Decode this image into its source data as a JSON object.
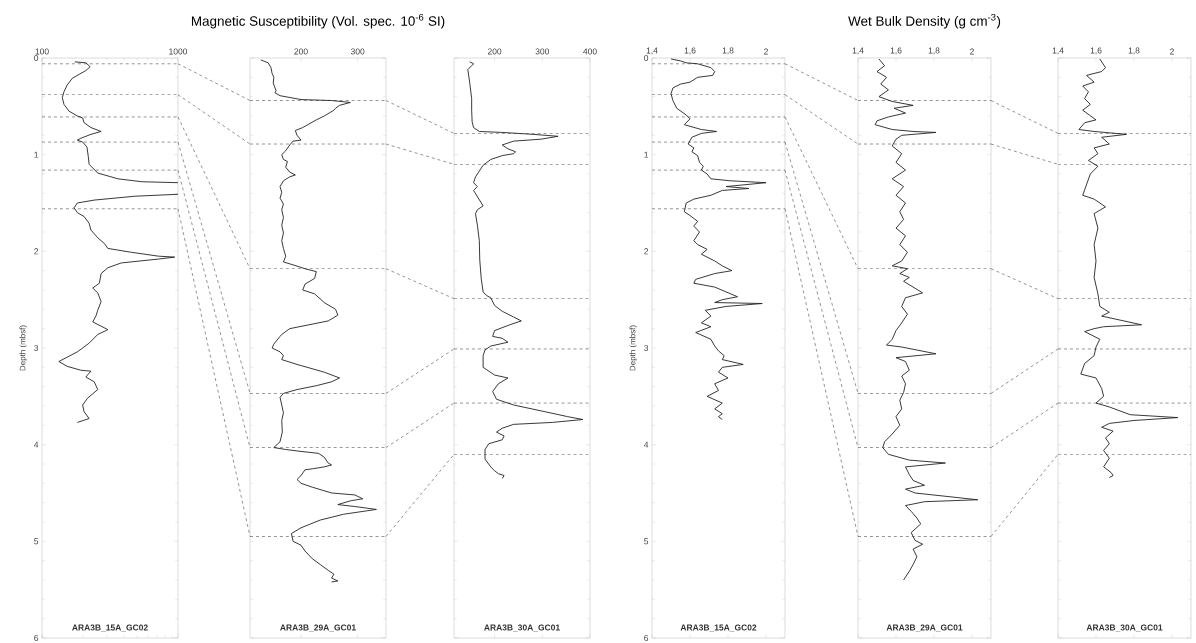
{
  "chart_data": [
    {
      "type": "line",
      "ylabel": "Depth (mbsf)",
      "xlim": [
        100,
        1000
      ],
      "ylim": [
        6,
        0
      ],
      "xticks": [
        100,
        1000
      ],
      "yticks": [
        0,
        1,
        2,
        3,
        4,
        5,
        6
      ],
      "log": "x",
      "annotations": [
        "ARA3B_15A_GC02"
      ],
      "ref_lines": [
        {
          "axis": "y",
          "value": 0.06,
          "line_style": "dashed"
        },
        {
          "axis": "y",
          "value": 0.38,
          "line_style": "dashed"
        },
        {
          "axis": "y",
          "value": 0.61,
          "line_style": "dashed"
        },
        {
          "axis": "y",
          "value": 0.87,
          "line_style": "dashed"
        },
        {
          "axis": "y",
          "value": 1.16,
          "line_style": "dashed"
        },
        {
          "axis": "y",
          "value": 1.56,
          "line_style": "dashed"
        }
      ],
      "series": [
        {
          "color": "#222222",
          "x": [
            174,
            210,
            226,
            210,
            167,
            153,
            145,
            141,
            145,
            158,
            182,
            199,
            204,
            229,
            272,
            229,
            193,
            182,
            199,
            214,
            219,
            222,
            257,
            362,
            540,
            1000,
            null,
            1000,
            481,
            242,
            182,
            172,
            182,
            204,
            222,
            229,
            257,
            288,
            305,
            454,
            718,
            945,
            718,
            383,
            305,
            272,
            264,
            236,
            257,
            272,
            257,
            249,
            236,
            305,
            257,
            222,
            182,
            133,
            153,
            193,
            229,
            210,
            242,
            257,
            216,
            199,
            204,
            222,
            182
          ],
          "values": [
            0.04,
            0.05,
            0.09,
            0.13,
            0.21,
            0.28,
            0.35,
            0.41,
            0.48,
            0.55,
            0.6,
            0.62,
            0.67,
            0.72,
            0.76,
            0.79,
            0.83,
            0.85,
            0.87,
            0.92,
            1.02,
            1.1,
            1.19,
            1.25,
            1.28,
            1.29,
            null,
            1.41,
            1.43,
            1.47,
            1.5,
            1.55,
            1.6,
            1.64,
            1.71,
            1.78,
            1.86,
            1.92,
            1.97,
            2.01,
            2.05,
            2.06,
            2.08,
            2.12,
            2.17,
            2.23,
            2.33,
            2.38,
            2.43,
            2.52,
            2.61,
            2.67,
            2.73,
            2.81,
            2.86,
            2.95,
            3.04,
            3.14,
            3.19,
            3.23,
            3.24,
            3.3,
            3.35,
            3.43,
            3.52,
            3.59,
            3.66,
            3.73,
            3.77
          ]
        }
      ]
    },
    {
      "type": "line",
      "title": "Magnetic Susceptibility (Vol. spec. 10$^{-6}$ SI)",
      "xlim": [
        110,
        350
      ],
      "ylim": [
        6,
        0
      ],
      "xticks": [
        200,
        300
      ],
      "yticks": [
        0,
        1,
        2,
        3,
        4,
        5,
        6
      ],
      "tick_labels": "x",
      "annotations": [
        "ARA3B_29A_GC01"
      ],
      "ref_lines": [
        {
          "axis": "y",
          "value": 0.44,
          "line_style": "dashed"
        },
        {
          "axis": "y",
          "value": 0.89,
          "line_style": "dashed"
        },
        {
          "axis": "y",
          "value": 2.18,
          "line_style": "dashed"
        },
        {
          "axis": "y",
          "value": 3.47,
          "line_style": "dashed"
        },
        {
          "axis": "y",
          "value": 4.03,
          "line_style": "dashed"
        },
        {
          "axis": "y",
          "value": 4.95,
          "line_style": "dashed"
        }
      ],
      "series": [
        {
          "color": "#222222",
          "x": [
            129,
            142,
            147,
            149,
            152,
            151,
            156,
            154,
            163,
            200,
            254,
            287,
            268,
            261,
            258,
            241,
            227,
            203,
            190,
            193,
            200,
            186,
            180,
            173,
            166,
            169,
            176,
            173,
            180,
            190,
            180,
            169,
            163,
            166,
            163,
            169,
            166,
            169,
            166,
            169,
            166,
            169,
            173,
            169,
            186,
            207,
            227,
            224,
            207,
            203,
            224,
            241,
            261,
            265,
            248,
            214,
            180,
            166,
            163,
            152,
            149,
            163,
            169,
            166,
            193,
            241,
            268,
            254,
            227,
            193,
            169,
            163,
            166,
            169,
            166,
            167,
            163,
            152,
            173,
            200,
            231,
            241,
            248,
            254,
            241,
            220,
            207,
            200,
            193,
            200,
            220,
            254,
            295,
            309,
            288,
            265,
            295,
            333,
            275,
            234,
            200,
            183,
            186,
            200,
            207,
            220,
            234,
            248,
            258,
            254,
            265,
            254
          ],
          "values": [
            0.02,
            0.05,
            0.1,
            0.16,
            0.2,
            0.26,
            0.34,
            0.36,
            0.39,
            0.43,
            0.44,
            0.46,
            0.49,
            0.52,
            0.54,
            0.6,
            0.64,
            0.72,
            0.75,
            0.8,
            0.85,
            0.86,
            0.9,
            0.96,
            1.0,
            1.05,
            1.07,
            1.13,
            1.18,
            1.21,
            1.23,
            1.27,
            1.33,
            1.39,
            1.45,
            1.51,
            1.57,
            1.65,
            1.73,
            1.81,
            1.89,
            1.97,
            2.05,
            2.11,
            2.14,
            2.18,
            2.21,
            2.28,
            2.34,
            2.4,
            2.44,
            2.53,
            2.6,
            2.66,
            2.72,
            2.76,
            2.8,
            2.86,
            2.88,
            2.96,
            3.0,
            3.04,
            3.08,
            3.12,
            3.17,
            3.25,
            3.31,
            3.35,
            3.39,
            3.43,
            3.47,
            3.51,
            3.59,
            3.67,
            3.75,
            3.87,
            3.97,
            4.03,
            4.05,
            4.07,
            4.09,
            4.13,
            4.19,
            4.21,
            4.23,
            4.25,
            4.26,
            4.32,
            4.36,
            4.4,
            4.44,
            4.5,
            4.52,
            4.56,
            4.58,
            4.62,
            4.64,
            4.67,
            4.72,
            4.78,
            4.86,
            4.92,
            5.0,
            5.04,
            5.1,
            5.18,
            5.24,
            5.3,
            5.34,
            5.38,
            5.41,
            5.42
          ]
        }
      ]
    },
    {
      "type": "line",
      "xlim": [
        115,
        400
      ],
      "ylim": [
        6,
        0
      ],
      "xticks": [
        200,
        300,
        400
      ],
      "yticks": [
        0,
        1,
        2,
        3,
        4,
        5,
        6
      ],
      "tick_labels": "x",
      "annotations": [
        "ARA3B_30A_GC01"
      ],
      "ref_lines": [
        {
          "axis": "y",
          "value": 0.78,
          "line_style": "dashed"
        },
        {
          "axis": "y",
          "value": 1.1,
          "line_style": "dashed"
        },
        {
          "axis": "y",
          "value": 2.49,
          "line_style": "dashed"
        },
        {
          "axis": "y",
          "value": 3.01,
          "line_style": "dashed"
        },
        {
          "axis": "y",
          "value": 3.57,
          "line_style": "dashed"
        },
        {
          "axis": "y",
          "value": 4.1,
          "line_style": "dashed"
        }
      ],
      "series": [
        {
          "color": "#222222",
          "x": [
            148,
            156,
            152,
            144,
            148,
            152,
            152,
            153,
            156,
            168,
            216,
            281,
            333,
            297,
            240,
            216,
            228,
            244,
            240,
            216,
            192,
            176,
            168,
            160,
            156,
            164,
            156,
            176,
            164,
            160,
            164,
            168,
            169,
            172,
            176,
            184,
            192,
            200,
            216,
            240,
            256,
            232,
            200,
            196,
            216,
            228,
            192,
            180,
            176,
            176,
            200,
            228,
            208,
            196,
            204,
            240,
            297,
            353,
            385,
            321,
            240,
            216,
            204,
            220,
            216,
            188,
            180,
            180,
            192,
            200,
            208,
            220,
            216
          ],
          "values": [
            0.04,
            0.06,
            0.08,
            0.12,
            0.26,
            0.42,
            0.54,
            0.66,
            0.72,
            0.76,
            0.77,
            0.79,
            0.81,
            0.84,
            0.86,
            0.9,
            0.94,
            0.97,
            0.99,
            1.01,
            1.05,
            1.11,
            1.17,
            1.23,
            1.29,
            1.33,
            1.37,
            1.53,
            1.57,
            1.61,
            1.73,
            1.89,
            2.09,
            2.28,
            2.42,
            2.46,
            2.48,
            2.56,
            2.62,
            2.68,
            2.72,
            2.76,
            2.82,
            2.88,
            2.9,
            2.94,
            2.98,
            3.02,
            3.08,
            3.2,
            3.28,
            3.31,
            3.37,
            3.45,
            3.53,
            3.59,
            3.65,
            3.71,
            3.74,
            3.77,
            3.79,
            3.83,
            3.87,
            3.91,
            3.95,
            3.99,
            4.05,
            4.15,
            4.23,
            4.27,
            4.3,
            4.32,
            4.35
          ]
        }
      ]
    },
    {
      "type": "line",
      "ylabel": "Depth (mbsf)",
      "xlim": [
        1.4,
        2.1
      ],
      "ylim": [
        6,
        0
      ],
      "xticks": [
        {
          "value": 1.4,
          "label": "1,4"
        },
        {
          "value": 1.6,
          "label": "1,6"
        },
        {
          "value": 1.8,
          "label": "1,8"
        },
        2
      ],
      "yticks": [
        0,
        1,
        2,
        3,
        4,
        5,
        6
      ],
      "annotations": [
        "ARA3B_15A_GC02"
      ],
      "ref_lines": [
        {
          "axis": "y",
          "value": 0.06,
          "line_style": "dashed"
        },
        {
          "axis": "y",
          "value": 0.38,
          "line_style": "dashed"
        },
        {
          "axis": "y",
          "value": 0.61,
          "line_style": "dashed"
        },
        {
          "axis": "y",
          "value": 0.87,
          "line_style": "dashed"
        },
        {
          "axis": "y",
          "value": 1.16,
          "line_style": "dashed"
        },
        {
          "axis": "y",
          "value": 1.56,
          "line_style": "dashed"
        }
      ],
      "series": [
        {
          "color": "#222222",
          "x": [
            1.5,
            1.55,
            1.58,
            1.64,
            1.71,
            1.73,
            1.72,
            1.64,
            1.6,
            1.55,
            1.51,
            1.5,
            1.51,
            1.53,
            1.58,
            1.6,
            1.57,
            1.66,
            1.74,
            1.66,
            1.61,
            1.59,
            1.62,
            1.61,
            1.64,
            1.65,
            1.67,
            1.66,
            1.69,
            1.71,
            1.81,
            2.0,
            1.79,
            1.91,
            1.77,
            1.71,
            1.62,
            1.58,
            1.57,
            1.6,
            1.64,
            1.62,
            1.65,
            1.62,
            1.64,
            1.69,
            1.66,
            1.73,
            1.77,
            1.82,
            1.73,
            1.63,
            1.62,
            1.73,
            1.85,
            1.77,
            1.73,
            1.98,
            1.79,
            1.68,
            1.71,
            1.66,
            1.71,
            1.63,
            1.71,
            1.73,
            1.75,
            1.78,
            1.77,
            1.88,
            1.77,
            1.75,
            1.8,
            1.73,
            1.75,
            1.69,
            1.77,
            1.73,
            1.77,
            1.75,
            1.77
          ],
          "values": [
            0.01,
            0.03,
            0.05,
            0.06,
            0.1,
            0.14,
            0.18,
            0.2,
            0.25,
            0.27,
            0.31,
            0.37,
            0.44,
            0.52,
            0.59,
            0.63,
            0.69,
            0.74,
            0.76,
            0.78,
            0.82,
            0.89,
            0.93,
            0.97,
            1.01,
            1.08,
            1.12,
            1.16,
            1.2,
            1.25,
            1.27,
            1.29,
            1.33,
            1.35,
            1.37,
            1.42,
            1.46,
            1.5,
            1.59,
            1.63,
            1.69,
            1.74,
            1.8,
            1.89,
            1.93,
            1.98,
            2.03,
            2.1,
            2.15,
            2.2,
            2.23,
            2.29,
            2.33,
            2.37,
            2.47,
            2.5,
            2.53,
            2.54,
            2.57,
            2.61,
            2.67,
            2.74,
            2.78,
            2.84,
            2.91,
            2.98,
            3.03,
            3.08,
            3.12,
            3.17,
            3.2,
            3.25,
            3.31,
            3.37,
            3.44,
            3.5,
            3.57,
            3.63,
            3.68,
            3.71,
            3.74
          ]
        }
      ]
    },
    {
      "type": "line",
      "title": "Wet Bulk Density (g cm$^{-3}$)",
      "xlim": [
        1.4,
        2.1
      ],
      "ylim": [
        6,
        0
      ],
      "xticks": [
        {
          "value": 1.4,
          "label": "1,4"
        },
        {
          "value": 1.6,
          "label": "1,6"
        },
        {
          "value": 1.8,
          "label": "1,8"
        },
        2
      ],
      "yticks": [
        0,
        1,
        2,
        3,
        4,
        5,
        6
      ],
      "tick_labels": "x",
      "annotations": [
        "ARA3B_29A_GC01"
      ],
      "ref_lines": [
        {
          "axis": "y",
          "value": 0.44,
          "line_style": "dashed"
        },
        {
          "axis": "y",
          "value": 0.89,
          "line_style": "dashed"
        },
        {
          "axis": "y",
          "value": 2.18,
          "line_style": "dashed"
        },
        {
          "axis": "y",
          "value": 3.47,
          "line_style": "dashed"
        },
        {
          "axis": "y",
          "value": 4.03,
          "line_style": "dashed"
        },
        {
          "axis": "y",
          "value": 4.95,
          "line_style": "dashed"
        }
      ],
      "series": [
        {
          "color": "#222222",
          "x": [
            1.51,
            1.54,
            1.5,
            1.55,
            1.52,
            1.56,
            1.51,
            1.58,
            1.69,
            1.59,
            1.65,
            1.56,
            1.5,
            1.49,
            1.58,
            1.69,
            1.81,
            1.63,
            1.6,
            1.58,
            1.63,
            1.6,
            1.65,
            1.58,
            1.64,
            1.6,
            1.65,
            1.62,
            1.64,
            1.6,
            1.65,
            1.62,
            1.66,
            1.63,
            1.58,
            1.66,
            1.62,
            1.67,
            1.64,
            1.74,
            1.65,
            1.63,
            1.66,
            1.63,
            1.6,
            1.58,
            1.55,
            1.63,
            1.81,
            1.6,
            1.65,
            1.67,
            1.63,
            1.65,
            1.64,
            1.62,
            1.63,
            1.6,
            1.62,
            1.58,
            1.54,
            1.53,
            1.56,
            1.67,
            1.86,
            1.65,
            1.67,
            1.69,
            1.75,
            1.65,
            1.7,
            2.03,
            1.75,
            1.65,
            1.68,
            1.71,
            1.73,
            1.68,
            1.7,
            1.74,
            1.69,
            1.71,
            1.69,
            1.67,
            1.65,
            1.64
          ],
          "values": [
            0.01,
            0.08,
            0.14,
            0.2,
            0.27,
            0.33,
            0.4,
            0.45,
            0.49,
            0.52,
            0.57,
            0.61,
            0.65,
            0.69,
            0.74,
            0.76,
            0.77,
            0.8,
            0.84,
            0.91,
            0.99,
            1.08,
            1.16,
            1.25,
            1.33,
            1.42,
            1.5,
            1.59,
            1.67,
            1.76,
            1.84,
            1.93,
            2.01,
            2.1,
            2.15,
            2.18,
            2.23,
            2.27,
            2.31,
            2.43,
            2.48,
            2.57,
            2.65,
            2.74,
            2.82,
            2.91,
            2.97,
            2.99,
            3.06,
            3.1,
            3.14,
            3.23,
            3.29,
            3.37,
            3.46,
            3.54,
            3.63,
            3.71,
            3.8,
            3.89,
            3.97,
            4.03,
            4.1,
            4.16,
            4.19,
            4.23,
            4.31,
            4.37,
            4.42,
            4.46,
            4.5,
            4.57,
            4.59,
            4.63,
            4.69,
            4.76,
            4.82,
            4.91,
            4.99,
            5.03,
            5.08,
            5.16,
            5.24,
            5.31,
            5.37,
            5.4
          ]
        }
      ]
    },
    {
      "type": "line",
      "xlim": [
        1.4,
        2.1
      ],
      "ylim": [
        6,
        0
      ],
      "xticks": [
        {
          "value": 1.4,
          "label": "1,4"
        },
        {
          "value": 1.6,
          "label": "1,6"
        },
        {
          "value": 1.8,
          "label": "1,8"
        },
        2
      ],
      "yticks": [
        0,
        1,
        2,
        3,
        4,
        5,
        6
      ],
      "tick_labels": "x",
      "annotations": [
        "ARA3B_30A_GC01"
      ],
      "ref_lines": [
        {
          "axis": "y",
          "value": 0.78,
          "line_style": "dashed"
        },
        {
          "axis": "y",
          "value": 1.1,
          "line_style": "dashed"
        },
        {
          "axis": "y",
          "value": 2.49,
          "line_style": "dashed"
        },
        {
          "axis": "y",
          "value": 3.01,
          "line_style": "dashed"
        },
        {
          "axis": "y",
          "value": 3.57,
          "line_style": "dashed"
        },
        {
          "axis": "y",
          "value": 4.1,
          "line_style": "dashed"
        }
      ],
      "series": [
        {
          "color": "#222222",
          "x": [
            1.62,
            1.65,
            1.63,
            1.55,
            1.59,
            1.53,
            1.56,
            1.54,
            1.57,
            1.53,
            1.6,
            1.54,
            1.51,
            1.59,
            1.76,
            1.63,
            1.67,
            1.59,
            1.61,
            1.56,
            1.61,
            1.57,
            1.53,
            1.59,
            1.65,
            1.59,
            1.61,
            1.59,
            1.6,
            1.59,
            1.61,
            1.62,
            1.67,
            1.63,
            1.84,
            1.64,
            1.59,
            1.54,
            1.62,
            1.6,
            1.59,
            1.54,
            1.52,
            1.6,
            1.63,
            1.64,
            1.6,
            1.67,
            1.78,
            2.03,
            1.8,
            1.67,
            1.63,
            1.69,
            1.65,
            1.67,
            1.64,
            1.67,
            1.64,
            1.68,
            1.69,
            1.67
          ],
          "values": [
            0.01,
            0.1,
            0.14,
            0.18,
            0.25,
            0.29,
            0.35,
            0.42,
            0.48,
            0.54,
            0.64,
            0.67,
            0.74,
            0.76,
            0.79,
            0.82,
            0.89,
            0.93,
            0.99,
            1.06,
            1.12,
            1.2,
            1.42,
            1.46,
            1.54,
            1.61,
            1.76,
            1.93,
            2.1,
            2.27,
            2.44,
            2.57,
            2.63,
            2.67,
            2.76,
            2.78,
            2.8,
            2.83,
            2.91,
            2.99,
            3.08,
            3.16,
            3.27,
            3.31,
            3.42,
            3.5,
            3.57,
            3.61,
            3.69,
            3.72,
            3.75,
            3.78,
            3.82,
            3.86,
            3.93,
            3.99,
            4.06,
            4.14,
            4.23,
            4.29,
            4.32,
            4.34
          ]
        }
      ]
    }
  ]
}
